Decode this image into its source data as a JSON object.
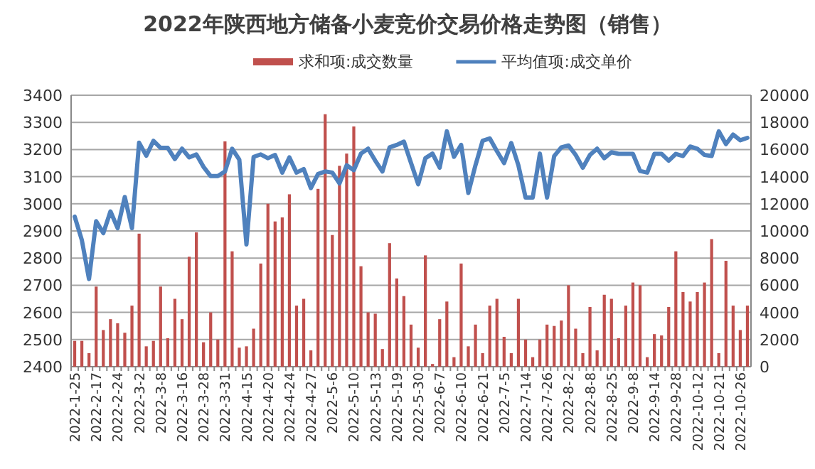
{
  "chart_data": {
    "type": "bar",
    "title": "2022年陕西地方储备小麦竞价交易价格走势图（销售）",
    "categories": [
      "2022-1-25",
      null,
      null,
      "2022-2-17",
      null,
      null,
      "2022-2-24",
      null,
      null,
      "2022-3-2",
      null,
      null,
      "2022-3-8",
      null,
      null,
      "2022-3-16",
      null,
      null,
      "2022-3-28",
      null,
      null,
      "2022-3-31",
      null,
      null,
      "2022-4-15",
      null,
      null,
      "2022-4-20",
      null,
      null,
      "2022-4-24",
      null,
      null,
      "2022-4-27",
      null,
      null,
      "2022-5-6",
      null,
      null,
      "2022-5-10",
      null,
      null,
      "2022-5-13",
      null,
      null,
      "2022-5-19",
      null,
      null,
      "2022-5-30",
      null,
      null,
      "2022-6-7",
      null,
      null,
      "2022-6-10",
      null,
      null,
      "2022-6-21",
      null,
      null,
      "2022-7-5",
      null,
      null,
      "2022-7-14",
      null,
      null,
      "2022-7-26",
      null,
      null,
      "2022-8-2",
      null,
      null,
      "2022-8-8",
      null,
      null,
      "2022-8-25",
      null,
      null,
      "2022-9-8",
      null,
      null,
      "2022-9-14",
      null,
      null,
      "2022-9-28",
      null,
      null,
      "2022-10-12",
      null,
      null,
      "2022-10-21",
      null,
      null,
      "2022-10-26",
      null
    ],
    "series": [
      {
        "name": "求和项:成交数量",
        "axis": "y2",
        "color": "#c0504d",
        "values": [
          1900,
          1900,
          1000,
          5900,
          2700,
          3500,
          3200,
          2500,
          4500,
          9800,
          1500,
          1900,
          5900,
          2100,
          5000,
          3500,
          8100,
          9900,
          1800,
          4000,
          2000,
          16600,
          8500,
          1400,
          1500,
          2800,
          7600,
          12000,
          10700,
          11000,
          12700,
          4500,
          5000,
          1200,
          13100,
          18600,
          9700,
          14800,
          15700,
          17700,
          7400,
          4000,
          3900,
          1300,
          9100,
          6500,
          5200,
          3100,
          1400,
          8200,
          200,
          3500,
          4800,
          700,
          7600,
          1500,
          3100,
          1000,
          4500,
          5000,
          2200,
          1000,
          5000,
          2000,
          700,
          2000,
          3100,
          3000,
          3400,
          6000,
          2800,
          1000,
          4400,
          1200,
          5300,
          5000,
          2100,
          4500,
          6200,
          6000,
          700,
          2400,
          2300,
          4400,
          8500,
          5500,
          4800,
          5500,
          6200,
          9400,
          1000,
          7800,
          4500,
          2700,
          4500
        ]
      },
      {
        "name": "平均值项:成交单价",
        "type": "line",
        "color": "#4f81bd",
        "values": [
          2953,
          2866,
          2723,
          2936,
          2892,
          2972,
          2910,
          3025,
          2910,
          3225,
          3177,
          3232,
          3206,
          3206,
          3165,
          3203,
          3171,
          3182,
          3136,
          3102,
          3102,
          3119,
          3203,
          3163,
          2850,
          3173,
          3182,
          3168,
          3180,
          3115,
          3171,
          3115,
          3128,
          3058,
          3110,
          3119,
          3115,
          3075,
          3142,
          3124,
          3185,
          3203,
          3159,
          3119,
          3208,
          3217,
          3229,
          3150,
          3072,
          3168,
          3185,
          3133,
          3267,
          3173,
          3217,
          3040,
          3142,
          3232,
          3241,
          3194,
          3150,
          3224,
          3142,
          3023,
          3023,
          3185,
          3023,
          3176,
          3208,
          3215,
          3180,
          3133,
          3180,
          3203,
          3168,
          3190,
          3184,
          3184,
          3184,
          3121,
          3115,
          3184,
          3184,
          3159,
          3184,
          3176,
          3211,
          3203,
          3180,
          3176,
          3267,
          3220,
          3255,
          3234,
          3243
        ]
      }
    ],
    "ylim": [
      2400,
      3400
    ],
    "yticks": [
      2400,
      2500,
      2600,
      2700,
      2800,
      2900,
      3000,
      3100,
      3200,
      3300,
      3400
    ],
    "y2lim": [
      0,
      20000
    ],
    "y2ticks": [
      0,
      2000,
      4000,
      6000,
      8000,
      10000,
      12000,
      14000,
      16000,
      18000,
      20000
    ],
    "grid": "y",
    "legend": "top"
  }
}
